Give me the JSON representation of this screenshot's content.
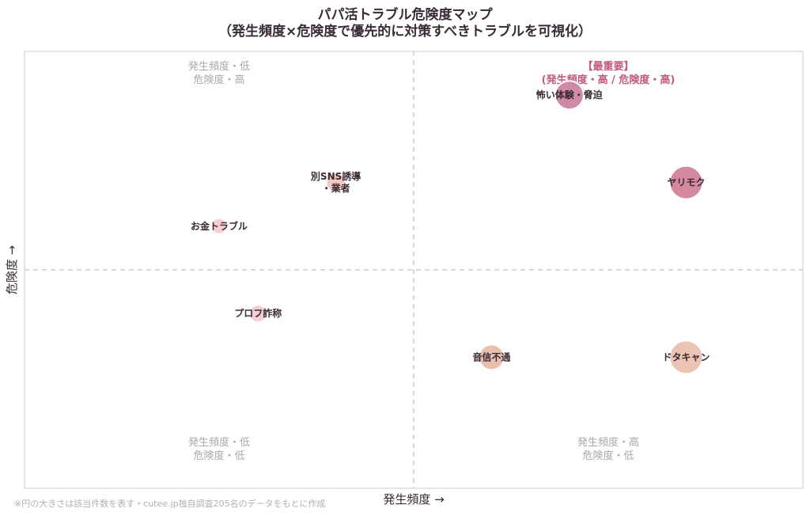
{
  "chart_data": {
    "type": "scatter",
    "title_line1": "パパ活トラブル危険度マップ",
    "title_line2": "（発生頻度×危険度で優先的に対策すべきトラブルを可視化）",
    "xlabel": "発生頻度 →",
    "ylabel": "危険度 →",
    "xlim": [
      0,
      10
    ],
    "ylim": [
      0,
      10
    ],
    "grid": false,
    "quadrant_dividers": {
      "x": 5,
      "y": 5
    },
    "quadrant_labels": {
      "top_left": [
        "発生頻度・低",
        "危険度・高"
      ],
      "top_right": [
        "【最重要】",
        "(発生頻度・高 / 危険度・高)"
      ],
      "bottom_left": [
        "発生頻度・低",
        "危険度・低"
      ],
      "bottom_right": [
        "発生頻度・高",
        "危険度・低"
      ]
    },
    "points": [
      {
        "label": [
          "怖い体験・脅迫"
        ],
        "x": 7.0,
        "y": 9.0,
        "size": 18,
        "color": "#cf8ba6"
      },
      {
        "label": [
          "ヤリモク"
        ],
        "x": 8.5,
        "y": 7.0,
        "size": 21,
        "color": "#d4899f"
      },
      {
        "label": [
          "別SNS誘導",
          "・業者"
        ],
        "x": 4.0,
        "y": 7.0,
        "size": 12,
        "color": "#f3c8bd"
      },
      {
        "label": [
          "お金トラブル"
        ],
        "x": 2.5,
        "y": 6.0,
        "size": 10,
        "color": "#f6cfd2"
      },
      {
        "label": [
          "プロフ詐称"
        ],
        "x": 3.0,
        "y": 4.0,
        "size": 11,
        "color": "#f6cfd2"
      },
      {
        "label": [
          "音信不通"
        ],
        "x": 6.0,
        "y": 3.0,
        "size": 16,
        "color": "#ebbfae"
      },
      {
        "label": [
          "ドタキャン"
        ],
        "x": 8.5,
        "y": 3.0,
        "size": 21,
        "color": "#ecc4b4"
      }
    ],
    "footnote": "※円の大きさは該当件数を表す・cutee.jp独自調査205名のデータをもとに作成"
  },
  "colors": {
    "text": "#3a2a35",
    "quadrant_text": "#a8a8a8",
    "highlight_text": "#c4587e",
    "frame": "#c8c8c8",
    "divider": "#cccccc"
  }
}
